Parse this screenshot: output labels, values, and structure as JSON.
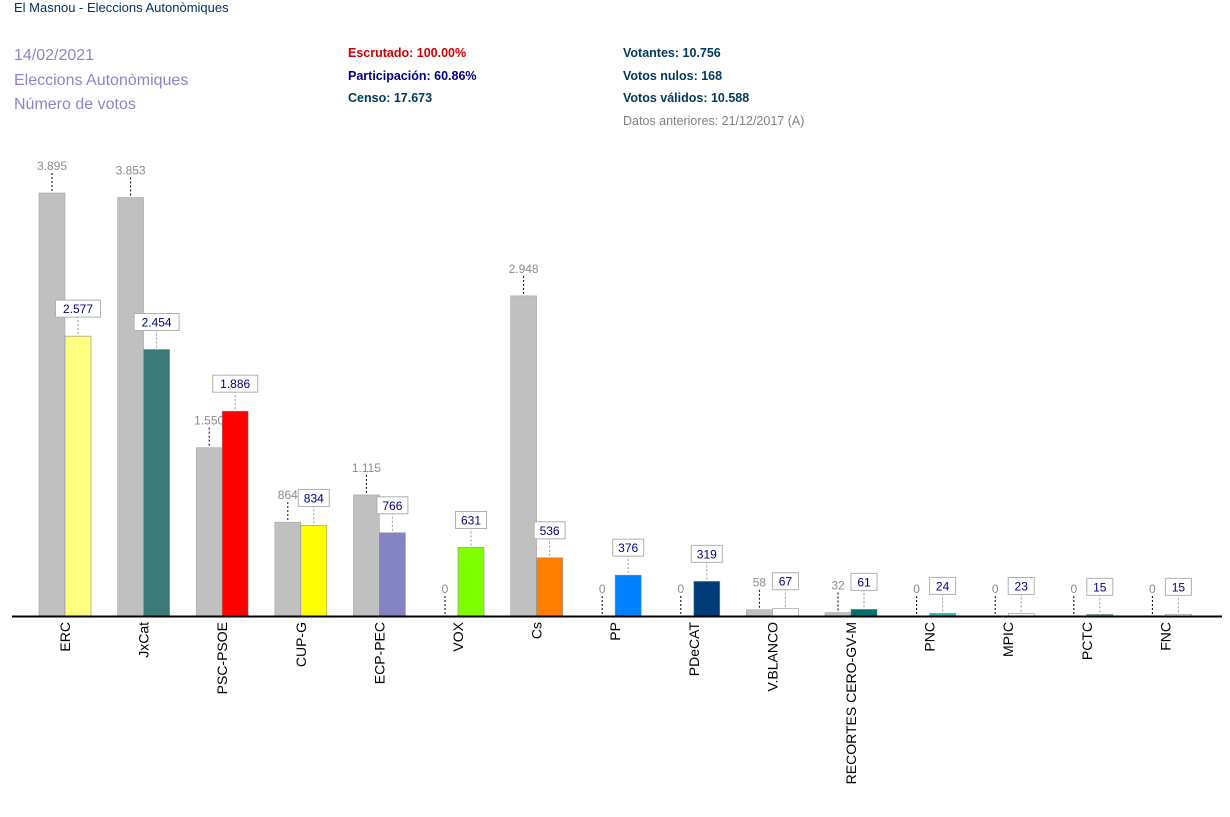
{
  "title": "El Masnou - Eleccions Autonòmiques",
  "meta": {
    "date": "14/02/2021",
    "election": "Eleccions Autonòmiques",
    "measure": "Número de votos"
  },
  "stats": {
    "escrutado": "Escrutado: 100.00%",
    "participacion": "Participación: 60.86%",
    "censo": "Censo: 17.673",
    "votantes": "Votantes: 10.756",
    "nulos": "Votos nulos: 168",
    "validos": "Votos válidos: 10.588",
    "anteriores": "Datos anteriores: 21/12/2017 (A)"
  },
  "colors": {
    "previous_bar": "#c0c0c0",
    "baseline": "#000000"
  },
  "chart_data": {
    "type": "bar",
    "ylim": [
      0,
      3895
    ],
    "categories": [
      "ERC",
      "JxCat",
      "PSC-PSOE",
      "CUP-G",
      "ECP-PEC",
      "VOX",
      "Cs",
      "PP",
      "PDeCAT",
      "V.BLANCO",
      "RECORTES CERO-GV-M",
      "PNC",
      "MPIC",
      "PCTC",
      "FNC"
    ],
    "series": [
      {
        "name": "Datos anteriores: 21/12/2017 (A)",
        "values": [
          3895,
          3853,
          1550,
          864,
          1115,
          0,
          2948,
          0,
          0,
          58,
          32,
          0,
          0,
          0,
          0
        ],
        "labels": [
          "3.895",
          "3.853",
          "1.550",
          "864",
          "1.115",
          "0",
          "2.948",
          "0",
          "0",
          "58",
          "32",
          "0",
          "0",
          "0",
          "0"
        ],
        "color": "#c0c0c0"
      },
      {
        "name": "14/02/2021",
        "values": [
          2577,
          2454,
          1886,
          834,
          766,
          631,
          536,
          376,
          319,
          67,
          61,
          24,
          23,
          15,
          15
        ],
        "labels": [
          "2.577",
          "2.454",
          "1.886",
          "834",
          "766",
          "631",
          "536",
          "376",
          "319",
          "67",
          "61",
          "24",
          "23",
          "15",
          "15"
        ],
        "colors": [
          "#ffff80",
          "#3c7a78",
          "#ff0000",
          "#ffff00",
          "#8484c4",
          "#80ff00",
          "#ff8000",
          "#0080ff",
          "#003c78",
          "#ffffff",
          "#00706c",
          "#48b4b0",
          "#ffffff",
          "#48b4b0",
          "#ffffff"
        ]
      }
    ]
  }
}
